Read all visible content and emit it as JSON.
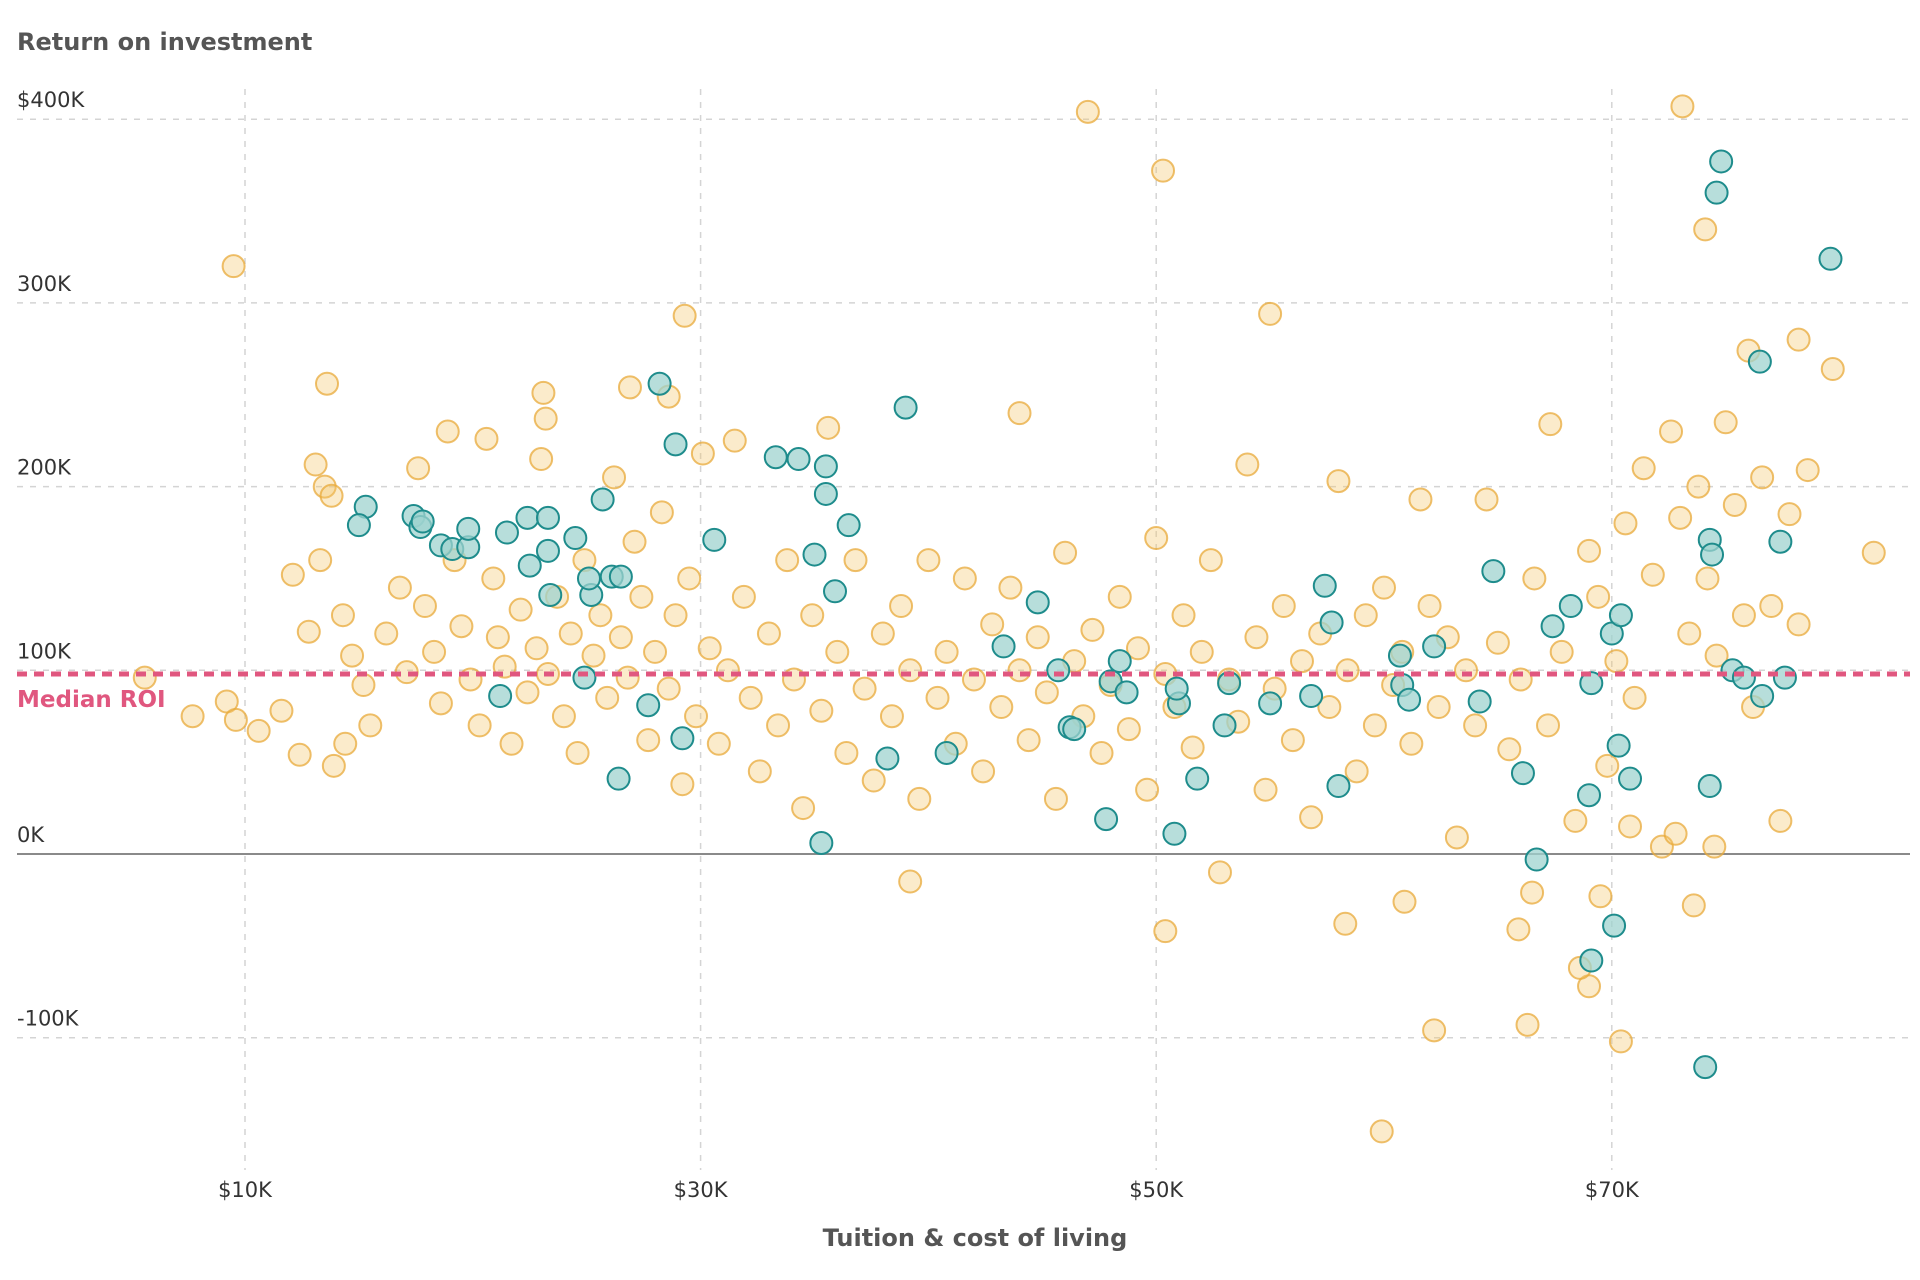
{
  "chart_data": {
    "type": "scatter",
    "title": "Return on investment",
    "xlabel": "Tuition & cost of living",
    "ylabel": "",
    "xlim": [
      0,
      83
    ],
    "ylim": [
      -165,
      410
    ],
    "x_ticks": [
      {
        "value": 10,
        "label": "$10K"
      },
      {
        "value": 30,
        "label": "$30K"
      },
      {
        "value": 50,
        "label": "$50K"
      },
      {
        "value": 70,
        "label": "$70K"
      }
    ],
    "y_ticks": [
      {
        "value": 400,
        "label": "$400K"
      },
      {
        "value": 300,
        "label": "300K"
      },
      {
        "value": 200,
        "label": "200K"
      },
      {
        "value": 100,
        "label": "100K"
      },
      {
        "value": 0,
        "label": "0K"
      },
      {
        "value": -100,
        "label": "-100K"
      }
    ],
    "grid": true,
    "reference_line": {
      "label": "Median ROI",
      "value": 98,
      "color": "#e0577f"
    },
    "colors": {
      "primary": "#e8a93a",
      "primary_fill": "#f3c56a",
      "highlight": "#1e8c8c",
      "highlight_fill": "#9fd3cf"
    },
    "series": [
      {
        "role": "primary",
        "points": [
          [
            9.5,
            320
          ],
          [
            13.6,
            256
          ],
          [
            47,
            404
          ],
          [
            50.3,
            372
          ],
          [
            73.1,
            407
          ],
          [
            74.1,
            340
          ],
          [
            55,
            294
          ],
          [
            29.3,
            293
          ],
          [
            23.1,
            251
          ],
          [
            23.2,
            237
          ],
          [
            28.6,
            249
          ],
          [
            26.9,
            254
          ],
          [
            44,
            240
          ],
          [
            67.3,
            234
          ],
          [
            78.2,
            280
          ],
          [
            79.7,
            264
          ],
          [
            76,
            274
          ],
          [
            81.5,
            164
          ],
          [
            59.9,
            -151
          ],
          [
            62.2,
            -96
          ],
          [
            66.3,
            -93
          ],
          [
            70.4,
            -102
          ],
          [
            69,
            -72
          ],
          [
            68.6,
            -62
          ],
          [
            39.2,
            -15
          ],
          [
            50.4,
            -42
          ],
          [
            60.9,
            -26
          ],
          [
            58.3,
            -38
          ],
          [
            73.6,
            -28
          ],
          [
            65.9,
            -41
          ],
          [
            66.5,
            -21
          ],
          [
            69.5,
            -23
          ],
          [
            7.7,
            75
          ],
          [
            5.6,
            96
          ],
          [
            9.2,
            83
          ],
          [
            9.6,
            73
          ],
          [
            10.6,
            67
          ],
          [
            11.6,
            78
          ],
          [
            12.4,
            54
          ],
          [
            13.1,
            212
          ],
          [
            13.5,
            200
          ],
          [
            13.8,
            195
          ],
          [
            13.3,
            160
          ],
          [
            12.8,
            121
          ],
          [
            12.1,
            152
          ],
          [
            14.3,
            130
          ],
          [
            14.7,
            108
          ],
          [
            15.2,
            92
          ],
          [
            14.4,
            60
          ],
          [
            13.9,
            48
          ],
          [
            15.5,
            70
          ],
          [
            16.2,
            120
          ],
          [
            16.8,
            145
          ],
          [
            17.1,
            99
          ],
          [
            17.6,
            210
          ],
          [
            17.9,
            135
          ],
          [
            18.3,
            110
          ],
          [
            18.6,
            82
          ],
          [
            18.9,
            230
          ],
          [
            19.2,
            160
          ],
          [
            19.5,
            124
          ],
          [
            19.9,
            95
          ],
          [
            20.3,
            70
          ],
          [
            20.6,
            226
          ],
          [
            20.9,
            150
          ],
          [
            21.1,
            118
          ],
          [
            21.4,
            102
          ],
          [
            21.7,
            60
          ],
          [
            22.1,
            133
          ],
          [
            22.4,
            88
          ],
          [
            22.8,
            112
          ],
          [
            23.0,
            215
          ],
          [
            23.3,
            98
          ],
          [
            23.7,
            140
          ],
          [
            24.0,
            75
          ],
          [
            24.3,
            120
          ],
          [
            24.6,
            55
          ],
          [
            24.9,
            160
          ],
          [
            25.3,
            108
          ],
          [
            25.6,
            130
          ],
          [
            25.9,
            85
          ],
          [
            26.2,
            205
          ],
          [
            26.5,
            118
          ],
          [
            26.8,
            96
          ],
          [
            27.1,
            170
          ],
          [
            27.4,
            140
          ],
          [
            27.7,
            62
          ],
          [
            28.0,
            110
          ],
          [
            28.3,
            186
          ],
          [
            28.6,
            90
          ],
          [
            28.9,
            130
          ],
          [
            29.2,
            38
          ],
          [
            29.5,
            150
          ],
          [
            29.8,
            75
          ],
          [
            30.1,
            218
          ],
          [
            30.4,
            112
          ],
          [
            30.8,
            60
          ],
          [
            31.2,
            100
          ],
          [
            31.5,
            225
          ],
          [
            31.9,
            140
          ],
          [
            32.2,
            85
          ],
          [
            32.6,
            45
          ],
          [
            33.0,
            120
          ],
          [
            33.4,
            70
          ],
          [
            33.8,
            160
          ],
          [
            34.1,
            95
          ],
          [
            34.5,
            25
          ],
          [
            34.9,
            130
          ],
          [
            35.3,
            78
          ],
          [
            35.6,
            232
          ],
          [
            36.0,
            110
          ],
          [
            36.4,
            55
          ],
          [
            36.8,
            160
          ],
          [
            37.2,
            90
          ],
          [
            37.6,
            40
          ],
          [
            38.0,
            120
          ],
          [
            38.4,
            75
          ],
          [
            38.8,
            135
          ],
          [
            39.2,
            100
          ],
          [
            39.6,
            30
          ],
          [
            40.0,
            160
          ],
          [
            40.4,
            85
          ],
          [
            40.8,
            110
          ],
          [
            41.2,
            60
          ],
          [
            41.6,
            150
          ],
          [
            42.0,
            95
          ],
          [
            42.4,
            45
          ],
          [
            42.8,
            125
          ],
          [
            43.2,
            80
          ],
          [
            43.6,
            145
          ],
          [
            44.0,
            100
          ],
          [
            44.4,
            62
          ],
          [
            44.8,
            118
          ],
          [
            45.2,
            88
          ],
          [
            45.6,
            30
          ],
          [
            46.0,
            164
          ],
          [
            46.4,
            105
          ],
          [
            46.8,
            75
          ],
          [
            47.2,
            122
          ],
          [
            47.6,
            55
          ],
          [
            48.0,
            92
          ],
          [
            48.4,
            140
          ],
          [
            48.8,
            68
          ],
          [
            49.2,
            112
          ],
          [
            49.6,
            35
          ],
          [
            50.0,
            172
          ],
          [
            50.4,
            98
          ],
          [
            50.8,
            80
          ],
          [
            51.2,
            130
          ],
          [
            51.6,
            58
          ],
          [
            52.0,
            110
          ],
          [
            52.4,
            160
          ],
          [
            52.8,
            -10
          ],
          [
            53.2,
            95
          ],
          [
            53.6,
            72
          ],
          [
            54.0,
            212
          ],
          [
            54.4,
            118
          ],
          [
            54.8,
            35
          ],
          [
            55.2,
            90
          ],
          [
            55.6,
            135
          ],
          [
            56.0,
            62
          ],
          [
            56.4,
            105
          ],
          [
            56.8,
            20
          ],
          [
            57.2,
            120
          ],
          [
            57.6,
            80
          ],
          [
            58.0,
            203
          ],
          [
            58.4,
            100
          ],
          [
            58.8,
            45
          ],
          [
            59.2,
            130
          ],
          [
            59.6,
            70
          ],
          [
            60.0,
            145
          ],
          [
            60.4,
            92
          ],
          [
            60.8,
            110
          ],
          [
            61.2,
            60
          ],
          [
            61.6,
            193
          ],
          [
            62.0,
            135
          ],
          [
            62.4,
            80
          ],
          [
            62.8,
            118
          ],
          [
            63.2,
            9
          ],
          [
            63.6,
            100
          ],
          [
            64.0,
            70
          ],
          [
            64.5,
            193
          ],
          [
            65.0,
            115
          ],
          [
            65.5,
            57
          ],
          [
            66.0,
            95
          ],
          [
            66.6,
            150
          ],
          [
            67.2,
            70
          ],
          [
            67.8,
            110
          ],
          [
            68.4,
            18
          ],
          [
            69.0,
            165
          ],
          [
            69.4,
            140
          ],
          [
            69.8,
            48
          ],
          [
            70.2,
            105
          ],
          [
            70.6,
            180
          ],
          [
            71.0,
            85
          ],
          [
            71.4,
            210
          ],
          [
            71.8,
            152
          ],
          [
            72.2,
            4
          ],
          [
            72.6,
            230
          ],
          [
            73.0,
            183
          ],
          [
            73.4,
            120
          ],
          [
            73.8,
            200
          ],
          [
            74.2,
            150
          ],
          [
            74.6,
            108
          ],
          [
            75.0,
            235
          ],
          [
            75.4,
            190
          ],
          [
            75.8,
            130
          ],
          [
            76.2,
            80
          ],
          [
            76.6,
            205
          ],
          [
            77.0,
            135
          ],
          [
            77.4,
            18
          ],
          [
            77.8,
            185
          ],
          [
            78.2,
            125
          ],
          [
            78.6,
            209
          ],
          [
            74.5,
            4
          ],
          [
            70.8,
            15
          ],
          [
            72.8,
            11
          ]
        ]
      },
      {
        "role": "highlight",
        "points": [
          [
            15.3,
            189
          ],
          [
            15.0,
            179
          ],
          [
            17.4,
            184
          ],
          [
            17.7,
            178
          ],
          [
            17.8,
            181
          ],
          [
            18.6,
            168
          ],
          [
            19.1,
            166
          ],
          [
            19.8,
            167
          ],
          [
            19.8,
            177
          ],
          [
            21.5,
            175
          ],
          [
            22.4,
            183
          ],
          [
            22.5,
            157
          ],
          [
            23.3,
            183
          ],
          [
            23.3,
            165
          ],
          [
            23.4,
            141
          ],
          [
            24.5,
            172
          ],
          [
            25.2,
            141
          ],
          [
            25.1,
            150
          ],
          [
            25.7,
            193
          ],
          [
            26.1,
            151
          ],
          [
            26.5,
            151
          ],
          [
            21.2,
            86
          ],
          [
            24.9,
            96
          ],
          [
            27.7,
            81
          ],
          [
            26.4,
            41
          ],
          [
            28.2,
            256
          ],
          [
            28.9,
            223
          ],
          [
            30.6,
            171
          ],
          [
            29.2,
            63
          ],
          [
            33.3,
            216
          ],
          [
            34.3,
            215
          ],
          [
            35.5,
            211
          ],
          [
            35.5,
            196
          ],
          [
            36.5,
            179
          ],
          [
            35.0,
            163
          ],
          [
            35.9,
            143
          ],
          [
            39.0,
            243
          ],
          [
            35.3,
            6
          ],
          [
            38.2,
            52
          ],
          [
            40.8,
            55
          ],
          [
            43.3,
            113
          ],
          [
            44.8,
            137
          ],
          [
            45.7,
            100
          ],
          [
            46.2,
            69
          ],
          [
            46.4,
            68
          ],
          [
            47.8,
            19
          ],
          [
            48.0,
            94
          ],
          [
            48.4,
            105
          ],
          [
            48.7,
            88
          ],
          [
            50.8,
            11
          ],
          [
            51.0,
            82
          ],
          [
            50.9,
            90
          ],
          [
            51.8,
            41
          ],
          [
            53.0,
            70
          ],
          [
            53.2,
            93
          ],
          [
            55.0,
            82
          ],
          [
            56.8,
            86
          ],
          [
            57.4,
            146
          ],
          [
            57.7,
            126
          ],
          [
            58.0,
            37
          ],
          [
            60.7,
            108
          ],
          [
            60.8,
            92
          ],
          [
            61.1,
            84
          ],
          [
            62.2,
            113
          ],
          [
            64.2,
            83
          ],
          [
            64.8,
            154
          ],
          [
            66.1,
            44
          ],
          [
            66.7,
            -3
          ],
          [
            67.4,
            124
          ],
          [
            68.2,
            135
          ],
          [
            69.0,
            32
          ],
          [
            69.1,
            93
          ],
          [
            69.1,
            -58
          ],
          [
            70.0,
            120
          ],
          [
            70.4,
            130
          ],
          [
            70.3,
            59
          ],
          [
            70.8,
            41
          ],
          [
            70.1,
            -39
          ],
          [
            74.3,
            37
          ],
          [
            74.3,
            171
          ],
          [
            74.4,
            163
          ],
          [
            75.3,
            100
          ],
          [
            75.8,
            96
          ],
          [
            76.6,
            86
          ],
          [
            77.6,
            96
          ],
          [
            77.4,
            170
          ],
          [
            74.1,
            -116
          ],
          [
            74.8,
            377
          ],
          [
            74.6,
            360
          ],
          [
            76.5,
            268
          ],
          [
            79.6,
            324
          ]
        ]
      }
    ]
  }
}
